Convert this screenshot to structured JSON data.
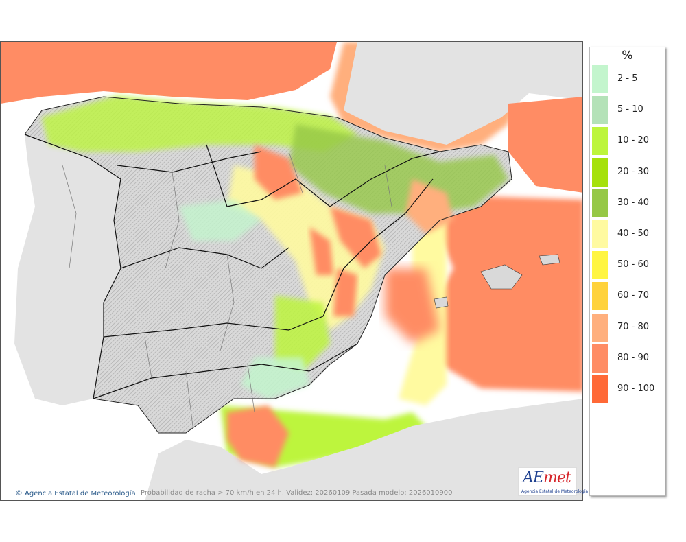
{
  "map": {
    "caption": "Probabilidad de racha > 70 km/h en 24 h. Validez: 20260109 Pasada modelo: 2026010900",
    "credit": "Agencia Estatal de Meteorología",
    "credit_symbol": "©"
  },
  "logo": {
    "mark_a": "AE",
    "mark_b": "met",
    "subtitle": "Agencia Estatal de Meteorología"
  },
  "legend": {
    "title": "%",
    "items": [
      {
        "label": "2 - 5",
        "color": "#c3f5cd"
      },
      {
        "label": "5 - 10",
        "color": "#b4e2b8"
      },
      {
        "label": "10 - 20",
        "color": "#bdf53c"
      },
      {
        "label": "20 - 30",
        "color": "#a5e10a"
      },
      {
        "label": "30 - 40",
        "color": "#96c846"
      },
      {
        "label": "40 - 50",
        "color": "#fffaa0"
      },
      {
        "label": "50 - 60",
        "color": "#fff541"
      },
      {
        "label": "60 - 70",
        "color": "#ffd23c"
      },
      {
        "label": "70 - 80",
        "color": "#ffaf7d"
      },
      {
        "label": "80 - 90",
        "color": "#ff8c64"
      },
      {
        "label": "90 - 100",
        "color": "#ff6937"
      }
    ]
  }
}
